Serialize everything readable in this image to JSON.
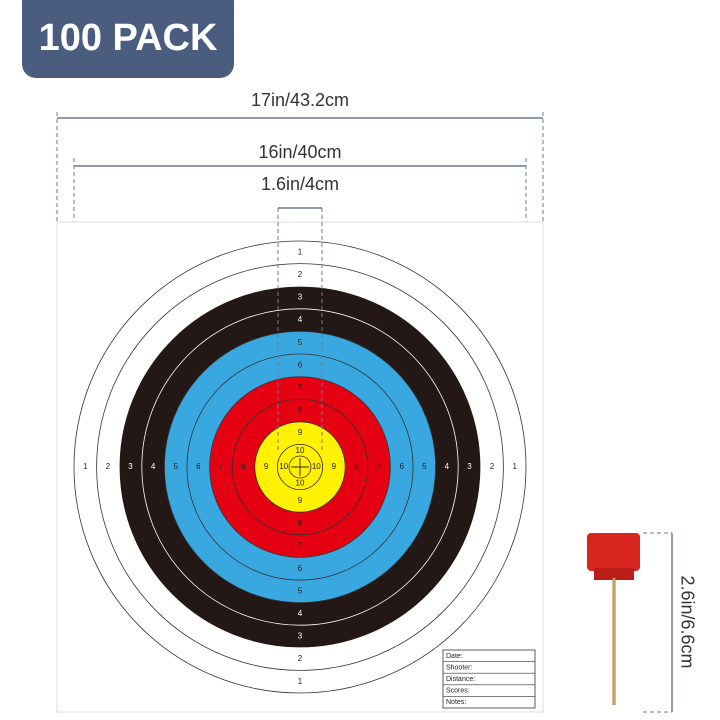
{
  "badge": "100 PACK",
  "dimensions": {
    "paper_width": "17in/43.2cm",
    "target_width": "16in/40cm",
    "center_width": "1.6in/4cm",
    "pin_height": "2.6in/6.6cm"
  },
  "ring_labels": [
    "1",
    "2",
    "3",
    "4",
    "5",
    "6",
    "7",
    "8",
    "9",
    "10"
  ],
  "score_form": [
    "Date:",
    "Shooter:",
    "Distance:",
    "Scores:",
    "Notes:"
  ]
}
